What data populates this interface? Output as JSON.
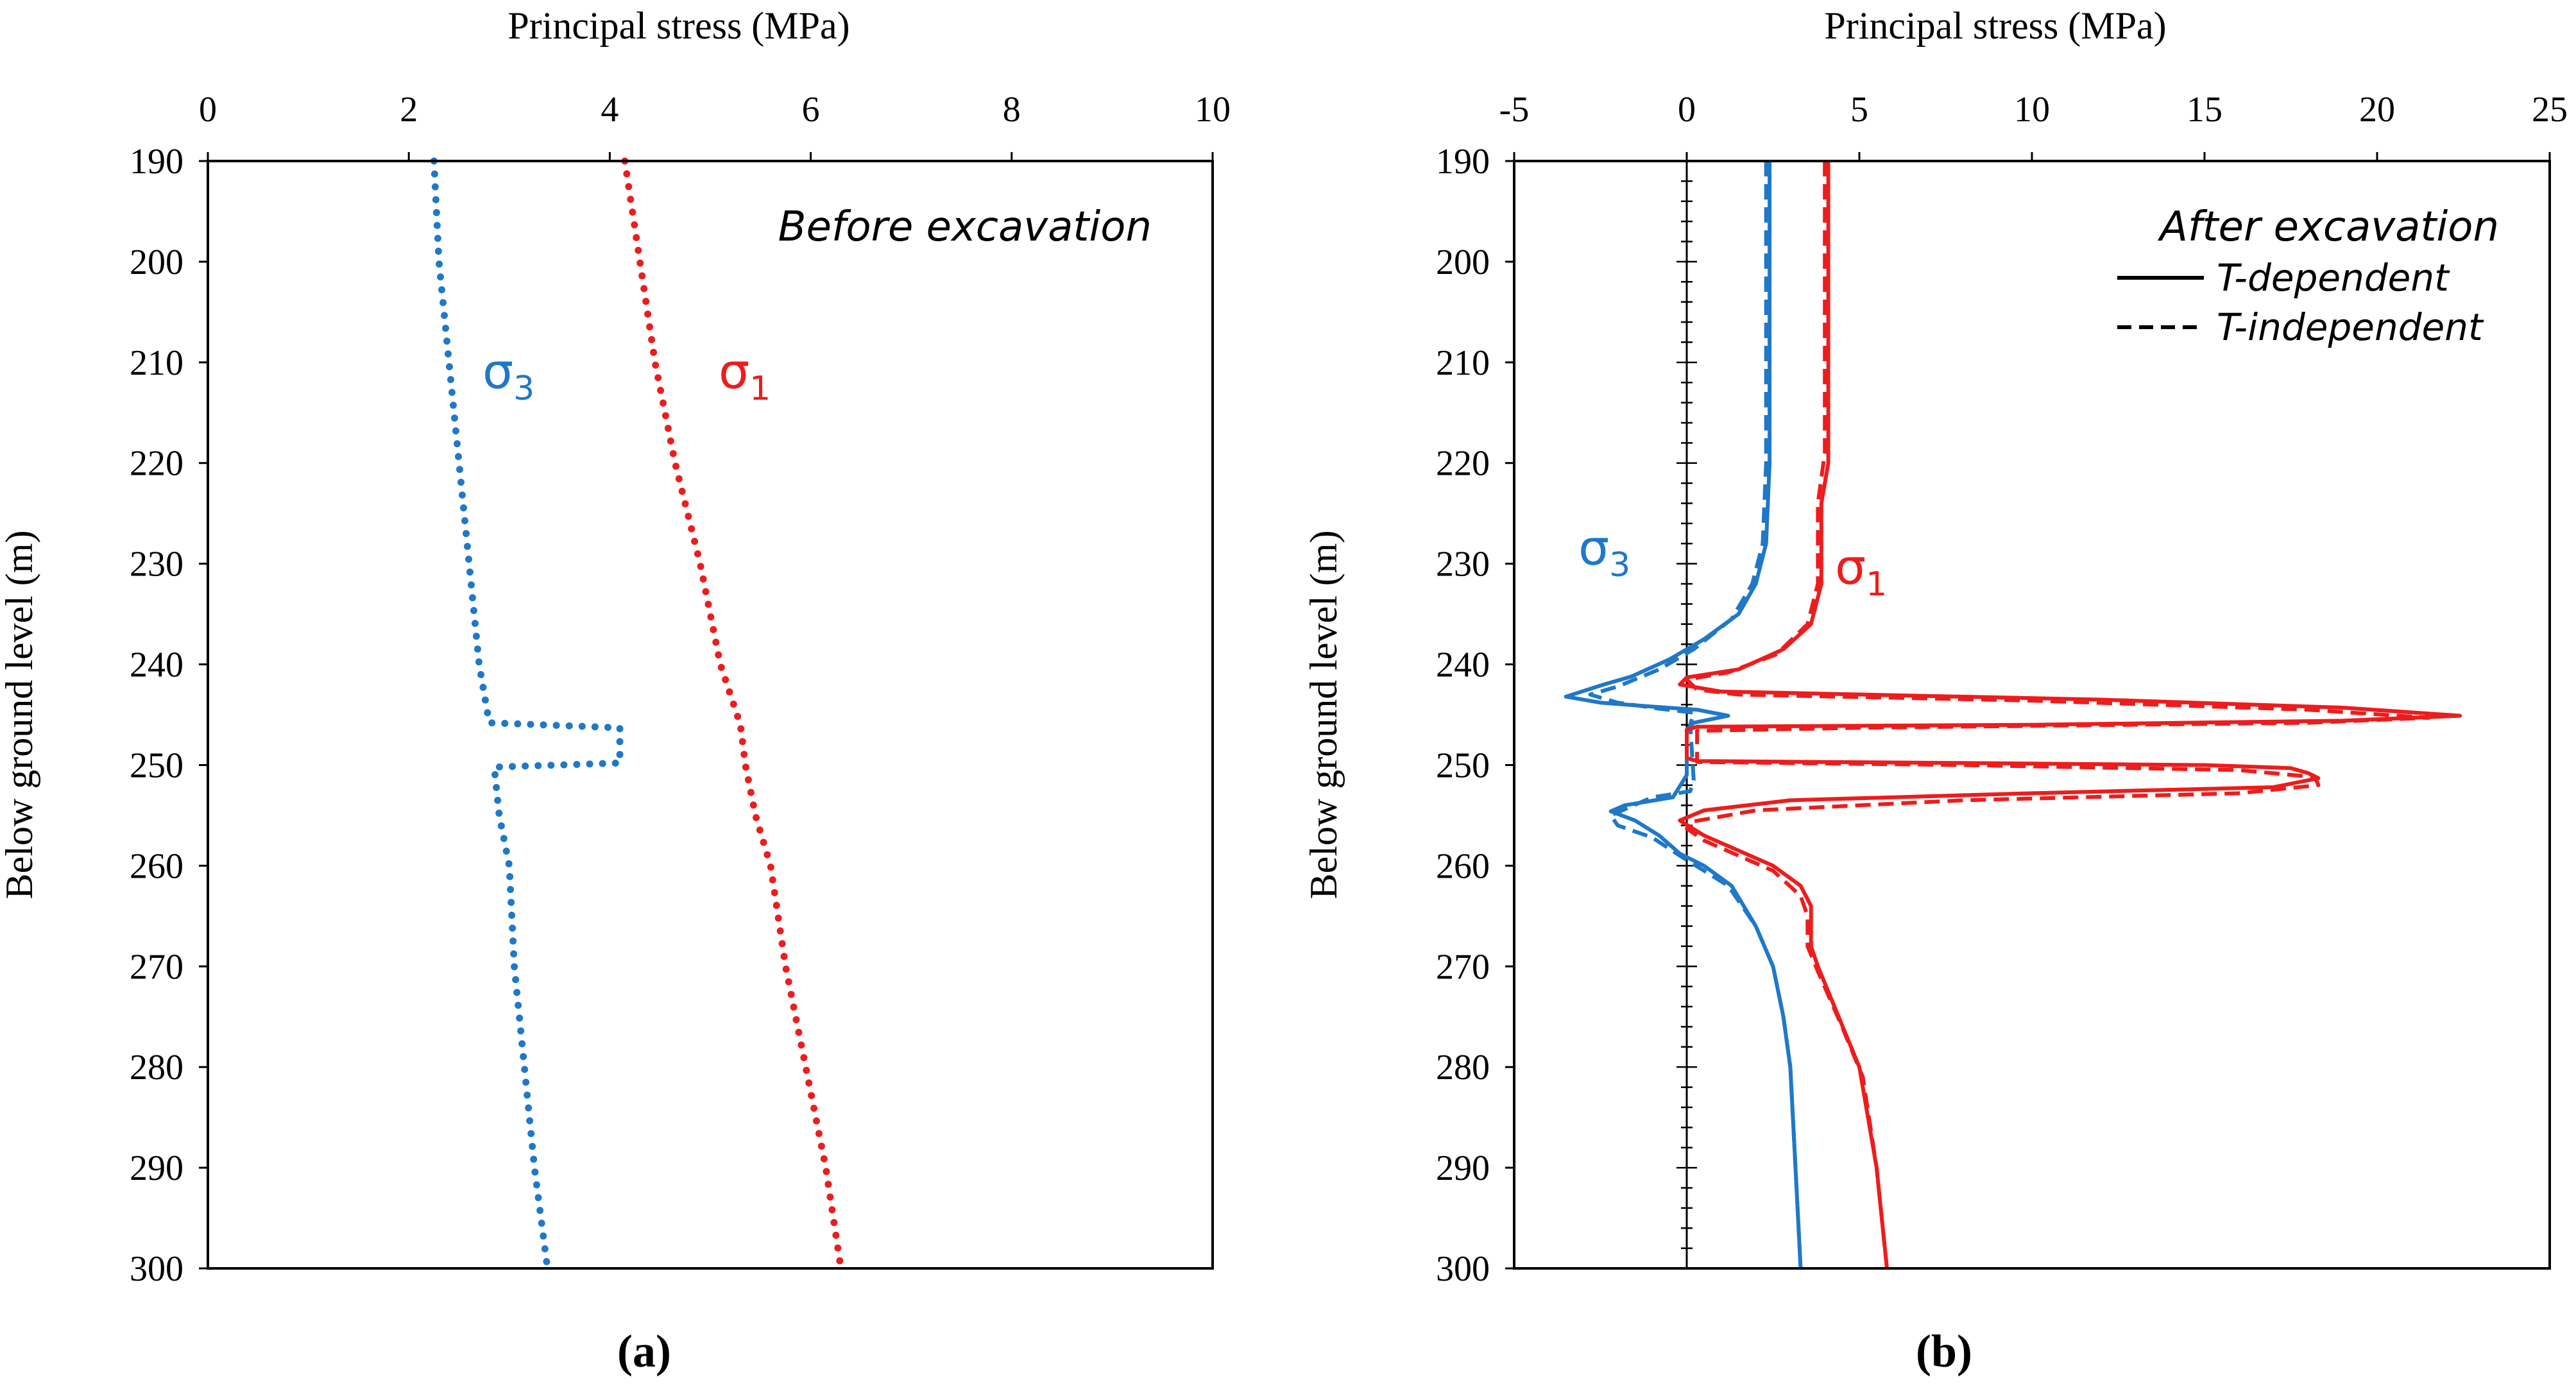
{
  "chart_data": [
    {
      "type": "line",
      "panel_label": "(a)",
      "xlabel": "Principal stress (MPa)",
      "ylabel": "Below ground level (m)",
      "xlim": [
        0,
        10
      ],
      "ylim": [
        190,
        300
      ],
      "y_inverted": true,
      "x_axis_position": "top",
      "xticks": [
        0,
        2,
        4,
        6,
        8,
        10
      ],
      "yticks": [
        190,
        200,
        210,
        220,
        230,
        240,
        250,
        260,
        270,
        280,
        290,
        300
      ],
      "grid": false,
      "annotation": "Before excavation",
      "series": [
        {
          "label": "σ",
          "subscript": "3",
          "color": "#1f78c8",
          "style": "dotted",
          "points": [
            [
              2.25,
              190
            ],
            [
              2.3,
              200
            ],
            [
              2.4,
              210
            ],
            [
              2.5,
              220
            ],
            [
              2.6,
              230
            ],
            [
              2.7,
              240
            ],
            [
              2.8,
              245.8
            ],
            [
              4.1,
              246.3
            ],
            [
              4.1,
              249.8
            ],
            [
              2.85,
              250.2
            ],
            [
              2.9,
              255
            ],
            [
              3.0,
              260
            ],
            [
              3.05,
              270
            ],
            [
              3.15,
              280
            ],
            [
              3.25,
              290
            ],
            [
              3.38,
              300
            ]
          ]
        },
        {
          "label": "σ",
          "subscript": "1",
          "color": "#ee1c1c",
          "style": "dotted",
          "points": [
            [
              4.15,
              190
            ],
            [
              4.3,
              200
            ],
            [
              4.45,
              210
            ],
            [
              4.65,
              220
            ],
            [
              4.9,
              230
            ],
            [
              5.1,
              240
            ],
            [
              5.3,
              246
            ],
            [
              5.35,
              250
            ],
            [
              5.45,
              255
            ],
            [
              5.6,
              260
            ],
            [
              5.75,
              270
            ],
            [
              5.95,
              280
            ],
            [
              6.15,
              290
            ],
            [
              6.3,
              300
            ]
          ]
        }
      ]
    },
    {
      "type": "line",
      "panel_label": "(b)",
      "xlabel": "Principal stress (MPa)",
      "ylabel": "Below ground level (m)",
      "xlim": [
        -5,
        25
      ],
      "ylim": [
        190,
        300
      ],
      "y_inverted": true,
      "x_axis_position": "top",
      "xticks": [
        -5,
        0,
        5,
        10,
        15,
        20,
        25
      ],
      "yticks": [
        190,
        200,
        210,
        220,
        230,
        240,
        250,
        260,
        270,
        280,
        290,
        300
      ],
      "grid": false,
      "annotation": "After excavation",
      "legend": {
        "position": "top-right",
        "entries": [
          {
            "name": "T-dependent",
            "style": "solid"
          },
          {
            "name": "T-independent",
            "style": "dashed"
          }
        ]
      },
      "series": [
        {
          "label": "σ",
          "subscript": "3",
          "color": "#1f78c8",
          "style": "solid",
          "case": "T-dependent",
          "points": [
            [
              2.4,
              190
            ],
            [
              2.4,
              220
            ],
            [
              2.3,
              228
            ],
            [
              2.0,
              232
            ],
            [
              1.5,
              235
            ],
            [
              0.5,
              237.5
            ],
            [
              -0.5,
              239.5
            ],
            [
              -1.6,
              241.2
            ],
            [
              -2.4,
              242
            ],
            [
              -3.5,
              243.2
            ],
            [
              -2.5,
              243.8
            ],
            [
              -1.0,
              244.2
            ],
            [
              0.3,
              244.5
            ],
            [
              1.2,
              245.1
            ],
            [
              0.2,
              245.8
            ],
            [
              0,
              246.5
            ],
            [
              0,
              251
            ],
            [
              -0.4,
              253.2
            ],
            [
              -1.8,
              254
            ],
            [
              -2.2,
              254.6
            ],
            [
              -1.5,
              255.5
            ],
            [
              -0.8,
              257
            ],
            [
              -0.2,
              258.8
            ],
            [
              0.5,
              260
            ],
            [
              1.3,
              262
            ],
            [
              2.0,
              266
            ],
            [
              2.5,
              270
            ],
            [
              2.8,
              275
            ],
            [
              3.0,
              280
            ],
            [
              3.15,
              290
            ],
            [
              3.3,
              300
            ]
          ]
        },
        {
          "label": "σ",
          "subscript": "3",
          "color": "#1f78c8",
          "style": "dashed",
          "case": "T-independent",
          "points": [
            [
              2.3,
              190
            ],
            [
              2.3,
              220
            ],
            [
              2.2,
              228
            ],
            [
              1.9,
              232
            ],
            [
              1.3,
              235.5
            ],
            [
              0.2,
              238.5
            ],
            [
              -0.8,
              240.5
            ],
            [
              -2.0,
              242.2
            ],
            [
              -2.8,
              243
            ],
            [
              -2.0,
              243.8
            ],
            [
              -0.8,
              244.4
            ],
            [
              0.2,
              244.8
            ],
            [
              0.1,
              246
            ],
            [
              0.2,
              251.5
            ],
            [
              0.1,
              252.6
            ],
            [
              -1.0,
              253.2
            ],
            [
              -2.2,
              255
            ],
            [
              -2.0,
              256
            ],
            [
              -1.0,
              257.2
            ],
            [
              -0.2,
              259
            ],
            [
              0.5,
              260.5
            ],
            [
              1.2,
              262
            ],
            [
              2.0,
              266
            ],
            [
              2.5,
              270
            ],
            [
              2.8,
              275
            ],
            [
              3.0,
              280
            ],
            [
              3.15,
              290
            ],
            [
              3.3,
              300
            ]
          ]
        },
        {
          "label": "σ",
          "subscript": "1",
          "color": "#ee1c1c",
          "style": "solid",
          "case": "T-dependent",
          "points": [
            [
              4.1,
              190
            ],
            [
              4.1,
              220
            ],
            [
              3.9,
              224
            ],
            [
              3.9,
              232
            ],
            [
              3.6,
              236
            ],
            [
              2.8,
              238.5
            ],
            [
              1.5,
              240.5
            ],
            [
              0,
              241.3
            ],
            [
              -0.2,
              242
            ],
            [
              0.3,
              242.3
            ],
            [
              1.0,
              242.7
            ],
            [
              12.0,
              243.5
            ],
            [
              19.0,
              244.3
            ],
            [
              22.4,
              245.1
            ],
            [
              19.0,
              245.6
            ],
            [
              10.0,
              246
            ],
            [
              0.3,
              246.2
            ],
            [
              0,
              246.5
            ],
            [
              0,
              249.3
            ],
            [
              0.3,
              249.6
            ],
            [
              8.0,
              249.8
            ],
            [
              15.0,
              250
            ],
            [
              17.5,
              250.3
            ],
            [
              18.0,
              250.8
            ],
            [
              18.3,
              251.3
            ],
            [
              17.0,
              252.2
            ],
            [
              10.0,
              252.8
            ],
            [
              3.0,
              253.5
            ],
            [
              0.5,
              254.5
            ],
            [
              -0.2,
              255.5
            ],
            [
              0.5,
              257
            ],
            [
              1.5,
              258.5
            ],
            [
              2.5,
              260
            ],
            [
              3.3,
              262
            ],
            [
              3.6,
              264
            ],
            [
              3.6,
              268
            ],
            [
              3.8,
              270
            ],
            [
              4.4,
              275
            ],
            [
              5.0,
              280
            ],
            [
              5.5,
              290
            ],
            [
              5.8,
              300
            ]
          ]
        },
        {
          "label": "σ",
          "subscript": "1",
          "color": "#ee1c1c",
          "style": "dashed",
          "case": "T-independent",
          "points": [
            [
              4.0,
              190
            ],
            [
              4.0,
              219
            ],
            [
              3.8,
              224
            ],
            [
              3.8,
              232
            ],
            [
              3.5,
              236
            ],
            [
              2.6,
              239
            ],
            [
              1.2,
              240.8
            ],
            [
              0,
              241.5
            ],
            [
              0.3,
              242.5
            ],
            [
              1.5,
              243
            ],
            [
              10.0,
              243.6
            ],
            [
              18.0,
              244.5
            ],
            [
              21.5,
              245.3
            ],
            [
              18.0,
              245.8
            ],
            [
              5.0,
              246.3
            ],
            [
              0.3,
              246.6
            ],
            [
              0.3,
              249.7
            ],
            [
              8.0,
              250
            ],
            [
              16.0,
              250.5
            ],
            [
              18.2,
              251.2
            ],
            [
              18.3,
              252
            ],
            [
              16.0,
              252.8
            ],
            [
              8.0,
              253.5
            ],
            [
              2.0,
              254.5
            ],
            [
              0.2,
              255.6
            ],
            [
              0,
              256.3
            ],
            [
              0.5,
              257.5
            ],
            [
              1.5,
              259
            ],
            [
              2.5,
              260.5
            ],
            [
              3.3,
              263
            ],
            [
              3.5,
              265
            ],
            [
              3.5,
              268
            ],
            [
              3.8,
              270.5
            ],
            [
              4.5,
              276
            ],
            [
              5.1,
              281
            ],
            [
              5.5,
              290
            ],
            [
              5.8,
              300
            ]
          ]
        }
      ]
    }
  ]
}
